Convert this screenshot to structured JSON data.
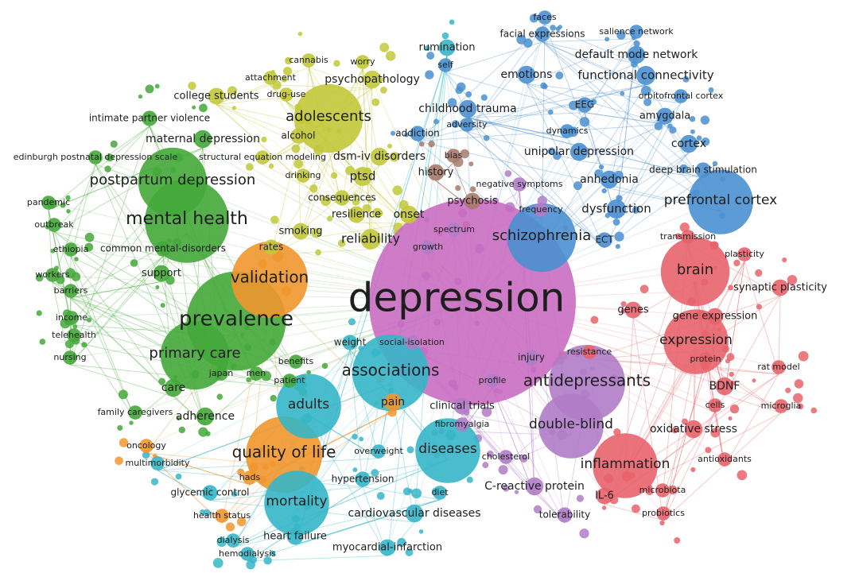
{
  "nodes": [
    {
      "label": "faces",
      "color": "#4a90d0"
    },
    {
      "label": "facial expressions",
      "color": "#4a90d0"
    },
    {
      "label": "salience network",
      "color": "#4a90d0"
    },
    {
      "label": "rumination",
      "color": "#35b6c8"
    },
    {
      "label": "default mode network",
      "color": "#4a90d0"
    },
    {
      "label": "cannabis",
      "color": "#c2c83a"
    },
    {
      "label": "worry",
      "color": "#c2c83a"
    },
    {
      "label": "self",
      "color": "#4a90d0"
    },
    {
      "label": "emotions",
      "color": "#4a90d0"
    },
    {
      "label": "functional connectivity",
      "color": "#4a90d0"
    },
    {
      "label": "attachment",
      "color": "#c2c83a"
    },
    {
      "label": "psychopathology",
      "color": "#c2c83a"
    },
    {
      "label": "college students",
      "color": "#c2c83a"
    },
    {
      "label": "drug-use",
      "color": "#c2c83a"
    },
    {
      "label": "orbitofrontal cortex",
      "color": "#4a90d0"
    },
    {
      "label": "EEG",
      "color": "#4a90d0"
    },
    {
      "label": "childhood trauma",
      "color": "#4a90d0"
    },
    {
      "label": "intimate partner violence",
      "color": "#44a83a"
    },
    {
      "label": "adolescents",
      "color": "#c2c83a"
    },
    {
      "label": "amygdala",
      "color": "#4a90d0"
    },
    {
      "label": "adversity",
      "color": "#4a90d0"
    },
    {
      "label": "addiction",
      "color": "#4a90d0"
    },
    {
      "label": "dynamics",
      "color": "#4a90d0"
    },
    {
      "label": "maternal depression",
      "color": "#44a83a"
    },
    {
      "label": "alcohol",
      "color": "#c2c83a"
    },
    {
      "label": "cortex",
      "color": "#4a90d0"
    },
    {
      "label": "unipolar depression",
      "color": "#4a90d0"
    },
    {
      "label": "edinburgh postnatal depression scale",
      "color": "#44a83a"
    },
    {
      "label": "structural equation modeling",
      "color": "#c2c83a"
    },
    {
      "label": "dsm-iv disorders",
      "color": "#c2c83a"
    },
    {
      "label": "bias",
      "color": "#a87a6a"
    },
    {
      "label": "deep brain stimulation",
      "color": "#4a90d0"
    },
    {
      "label": "history",
      "color": "#a87a6a"
    },
    {
      "label": "postpartum depression",
      "color": "#44a83a"
    },
    {
      "label": "drinking",
      "color": "#c2c83a"
    },
    {
      "label": "ptsd",
      "color": "#c2c83a"
    },
    {
      "label": "negative symptoms",
      "color": "#b07cc6"
    },
    {
      "label": "anhedonia",
      "color": "#4a90d0"
    },
    {
      "label": "consequences",
      "color": "#c2c83a"
    },
    {
      "label": "psychosis",
      "color": "#a87a6a"
    },
    {
      "label": "prefrontal cortex",
      "color": "#4a90d0"
    },
    {
      "label": "pandemic",
      "color": "#44a83a"
    },
    {
      "label": "resilience",
      "color": "#c2c83a"
    },
    {
      "label": "onset",
      "color": "#c2c83a"
    },
    {
      "label": "frequency",
      "color": "#b07cc6"
    },
    {
      "label": "dysfunction",
      "color": "#4a90d0"
    },
    {
      "label": "mental health",
      "color": "#44a83a"
    },
    {
      "label": "outbreak",
      "color": "#44a83a"
    },
    {
      "label": "spectrum",
      "color": "#b07cc6"
    },
    {
      "label": "smoking",
      "color": "#c2c83a"
    },
    {
      "label": "reliability",
      "color": "#c2c83a"
    },
    {
      "label": "schizophrenia",
      "color": "#4a90d0"
    },
    {
      "label": "ECT",
      "color": "#4a90d0"
    },
    {
      "label": "transmission",
      "color": "#e8636b"
    },
    {
      "label": "ethiopia",
      "color": "#44a83a"
    },
    {
      "label": "common mental-disorders",
      "color": "#44a83a"
    },
    {
      "label": "rates",
      "color": "#c2c83a"
    },
    {
      "label": "growth",
      "color": "#b07cc6"
    },
    {
      "label": "plasticity",
      "color": "#e8636b"
    },
    {
      "label": "workers",
      "color": "#44a83a"
    },
    {
      "label": "support",
      "color": "#44a83a"
    },
    {
      "label": "validation",
      "color": "#f0962e"
    },
    {
      "label": "brain",
      "color": "#e8636b"
    },
    {
      "label": "barriers",
      "color": "#44a83a"
    },
    {
      "label": "synaptic plasticity",
      "color": "#e8636b"
    },
    {
      "label": "depression",
      "color": "#c86ac0"
    },
    {
      "label": "genes",
      "color": "#e8636b"
    },
    {
      "label": "income",
      "color": "#44a83a"
    },
    {
      "label": "prevalence",
      "color": "#44a83a"
    },
    {
      "label": "gene expression",
      "color": "#e8636b"
    },
    {
      "label": "telehealth",
      "color": "#44a83a"
    },
    {
      "label": "weight",
      "color": "#35b6c8"
    },
    {
      "label": "social-isolation",
      "color": "#b07cc6"
    },
    {
      "label": "expression",
      "color": "#e8636b"
    },
    {
      "label": "resistance",
      "color": "#e8636b"
    },
    {
      "label": "primary care",
      "color": "#44a83a"
    },
    {
      "label": "nursing",
      "color": "#44a83a"
    },
    {
      "label": "injury",
      "color": "#b07cc6"
    },
    {
      "label": "protein",
      "color": "#e8636b"
    },
    {
      "label": "rat model",
      "color": "#e8636b"
    },
    {
      "label": "benefits",
      "color": "#44a83a"
    },
    {
      "label": "japan",
      "color": "#44a83a"
    },
    {
      "label": "men",
      "color": "#44a83a"
    },
    {
      "label": "associations",
      "color": "#35b6c8"
    },
    {
      "label": "patient",
      "color": "#44a83a"
    },
    {
      "label": "profile",
      "color": "#b07cc6"
    },
    {
      "label": "antidepressants",
      "color": "#b07cc6"
    },
    {
      "label": "BDNF",
      "color": "#e8636b"
    },
    {
      "label": "care",
      "color": "#44a83a"
    },
    {
      "label": "adults",
      "color": "#35b6c8"
    },
    {
      "label": "pain",
      "color": "#f0962e"
    },
    {
      "label": "clinical trials",
      "color": "#b07cc6"
    },
    {
      "label": "cells",
      "color": "#e8636b"
    },
    {
      "label": "microglia",
      "color": "#e8636b"
    },
    {
      "label": "family caregivers",
      "color": "#44a83a"
    },
    {
      "label": "adherence",
      "color": "#44a83a"
    },
    {
      "label": "fibromyalgia",
      "color": "#b07cc6"
    },
    {
      "label": "double-blind",
      "color": "#b07cc6"
    },
    {
      "label": "oxidative stress",
      "color": "#e8636b"
    },
    {
      "label": "oncology",
      "color": "#f0962e"
    },
    {
      "label": "diseases",
      "color": "#35b6c8"
    },
    {
      "label": "quality of life",
      "color": "#f0962e"
    },
    {
      "label": "overweight",
      "color": "#35b6c8"
    },
    {
      "label": "cholesterol",
      "color": "#b07cc6"
    },
    {
      "label": "antioxidants",
      "color": "#e8636b"
    },
    {
      "label": "multimorbidity",
      "color": "#35b6c8"
    },
    {
      "label": "inflammation",
      "color": "#e8636b"
    },
    {
      "label": "hads",
      "color": "#f0962e"
    },
    {
      "label": "hypertension",
      "color": "#35b6c8"
    },
    {
      "label": "C-reactive protein",
      "color": "#b07cc6"
    },
    {
      "label": "microbiota",
      "color": "#e8636b"
    },
    {
      "label": "glycemic control",
      "color": "#35b6c8"
    },
    {
      "label": "IL-6",
      "color": "#e8636b"
    },
    {
      "label": "mortality",
      "color": "#35b6c8"
    },
    {
      "label": "diet",
      "color": "#35b6c8"
    },
    {
      "label": "cardiovascular diseases",
      "color": "#35b6c8"
    },
    {
      "label": "tolerability",
      "color": "#b07cc6"
    },
    {
      "label": "probiotics",
      "color": "#e8636b"
    },
    {
      "label": "health status",
      "color": "#f0962e"
    },
    {
      "label": "heart failure",
      "color": "#35b6c8"
    },
    {
      "label": "dialysis",
      "color": "#35b6c8"
    },
    {
      "label": "myocardial-infarction",
      "color": "#35b6c8"
    },
    {
      "label": "hemodialysis",
      "color": "#35b6c8"
    }
  ]
}
